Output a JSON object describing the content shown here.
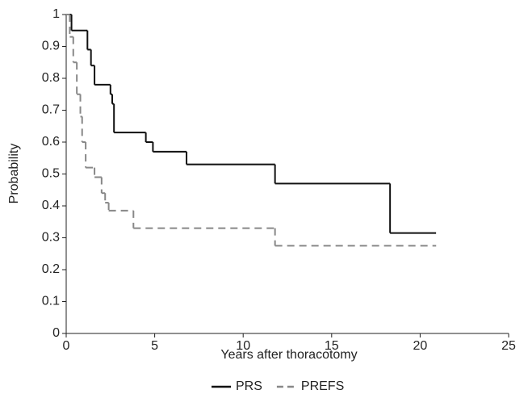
{
  "chart_data": {
    "type": "step",
    "x_label": "Years after thoracotomy",
    "y_label": "Probability",
    "xlim": [
      0,
      25
    ],
    "xticks": [
      0,
      5,
      10,
      15,
      20,
      25
    ],
    "ylim": [
      0,
      1
    ],
    "yticks": [
      0,
      0.1,
      0.2,
      0.3,
      0.4,
      0.5,
      0.6,
      0.7,
      0.8,
      0.9,
      1
    ],
    "series": [
      {
        "name": "PRS",
        "color": "#111111",
        "dashed": false,
        "x": [
          0,
          0.3,
          1.2,
          1.4,
          1.6,
          2.5,
          2.6,
          2.7,
          4.5,
          4.9,
          6.8,
          11.8,
          18.3,
          20.9
        ],
        "values": [
          1,
          0.95,
          0.89,
          0.84,
          0.78,
          0.75,
          0.72,
          0.63,
          0.6,
          0.57,
          0.53,
          0.47,
          0.315,
          0.315
        ]
      },
      {
        "name": "PREFS",
        "color": "#888888",
        "dashed": true,
        "x": [
          0,
          0.2,
          0.4,
          0.6,
          0.8,
          0.9,
          1.1,
          1.6,
          2.0,
          2.2,
          2.4,
          3.8,
          11.8,
          20.9
        ],
        "values": [
          1,
          0.93,
          0.85,
          0.75,
          0.68,
          0.6,
          0.52,
          0.49,
          0.44,
          0.41,
          0.385,
          0.33,
          0.275,
          0.275
        ]
      }
    ]
  }
}
